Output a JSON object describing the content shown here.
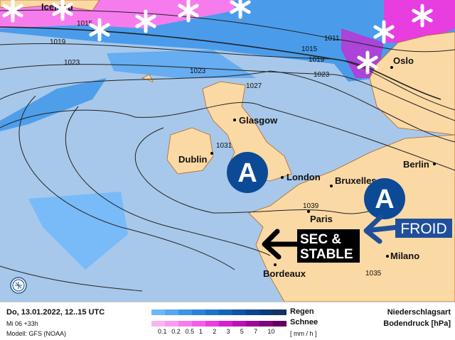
{
  "map": {
    "cities": [
      {
        "name": "Iceland"
      },
      {
        "name": "Oslo"
      },
      {
        "name": "Glasgow"
      },
      {
        "name": "Dublin"
      },
      {
        "name": "London"
      },
      {
        "name": "Berlin"
      },
      {
        "name": "Bruxelles"
      },
      {
        "name": "Paris"
      },
      {
        "name": "Bordeaux"
      },
      {
        "name": "Milano"
      }
    ],
    "isobars": [
      "1015",
      "1011",
      "1019",
      "1019",
      "1015",
      "1023",
      "1023",
      "1023",
      "1027",
      "1031",
      "1039",
      "1035"
    ],
    "high_pressure_symbols": [
      "A",
      "A"
    ],
    "annotations": {
      "froid": "FROID",
      "sec_line1": "SEC &",
      "sec_line2": "STABLE"
    },
    "colors": {
      "sea": "#a7c8ea",
      "land": "#fbd9a5",
      "high": "#0d4a96",
      "froid": "#1f4f9a",
      "sec": "#000000"
    },
    "icons": [
      "snowflake-icon",
      "high-pressure-icon",
      "logo-icon"
    ]
  },
  "legend": {
    "date": "Do, 13.01.2022, 12..15 UTC",
    "run": "Mi 06 +33h",
    "model": "Modell: GFS (NOAA)",
    "rain_label": "Regen",
    "snow_label": "Schnee",
    "unit": "[ mm / h ]",
    "ticks": [
      "0.1",
      "0.2",
      "0.5",
      "1",
      "2",
      "3",
      "5",
      "7",
      "10"
    ],
    "rain_colors": [
      "#6db8fb",
      "#56a6f2",
      "#3a94ea",
      "#2a84de",
      "#1c72cf",
      "#1463bb",
      "#0d54a6",
      "#0a4690",
      "#0c3b7a",
      "#11355f"
    ],
    "snow_colors": [
      "#fbb4f4",
      "#f99cf1",
      "#f67cee",
      "#f25ee9",
      "#e83ee0",
      "#d41fd0",
      "#bb12b8",
      "#9b0a9a",
      "#7d057d",
      "#620060"
    ],
    "type_label": "Niederschlagsart",
    "pressure_label": "Bodendruck [hPa]"
  }
}
